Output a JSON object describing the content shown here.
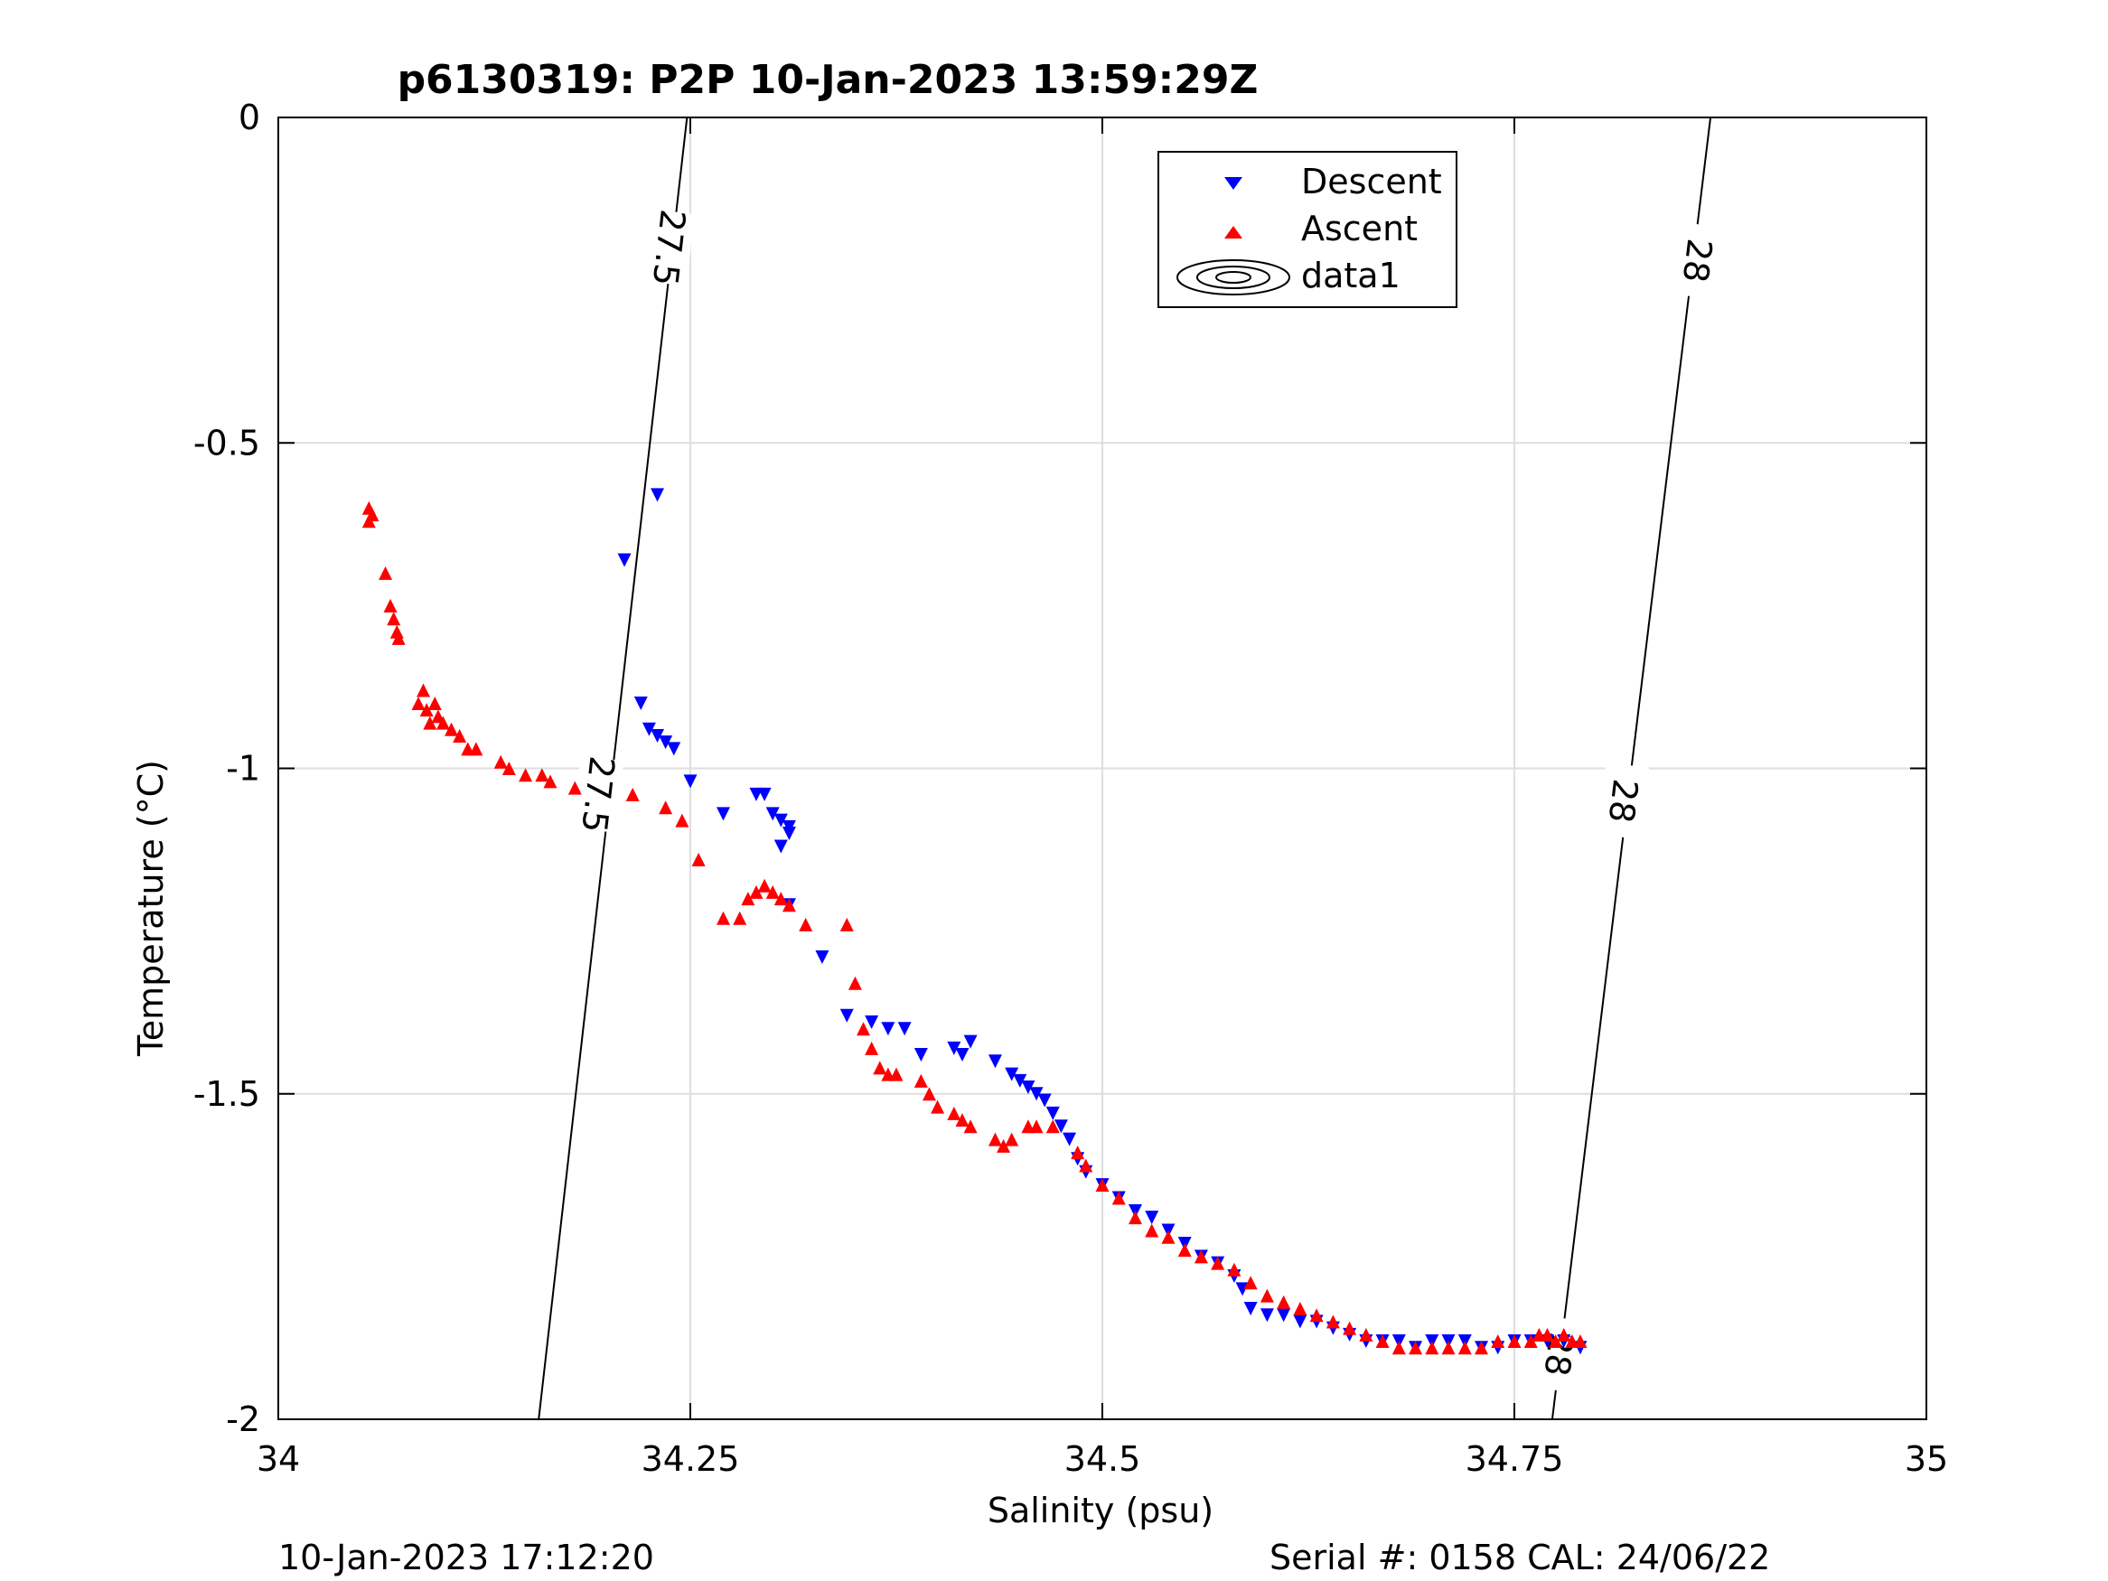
{
  "chart_data": {
    "type": "scatter",
    "title": "p6130319: P2P 10-Jan-2023 13:59:29Z",
    "xlabel": "Salinity (psu)",
    "ylabel": "Temperature (°C)",
    "xlim": [
      34,
      35
    ],
    "ylim": [
      -2,
      0
    ],
    "xticks": [
      "34",
      "34.25",
      "34.5",
      "34.75",
      "35"
    ],
    "xtick_values": [
      34,
      34.25,
      34.5,
      34.75,
      35
    ],
    "yticks": [
      "0",
      "-0.5",
      "-1",
      "-1.5",
      "-2"
    ],
    "ytick_values": [
      0,
      -0.5,
      -1,
      -1.5,
      -2
    ],
    "grid": true,
    "legend_position": "top-center",
    "footer_left": "10-Jan-2023 17:12:20",
    "footer_right": "Serial #: 0158  CAL: 24/06/22",
    "legend": [
      "Descent",
      "Ascent",
      "data1"
    ],
    "colors": {
      "descent": "#0000ff",
      "ascent": "#ff0000",
      "contour": "#000000",
      "grid": "#dedede"
    },
    "series": [
      {
        "name": "Descent",
        "marker": "triangle-down",
        "points": [
          [
            34.23,
            -0.58
          ],
          [
            34.21,
            -0.68
          ],
          [
            34.22,
            -0.9
          ],
          [
            34.225,
            -0.94
          ],
          [
            34.23,
            -0.95
          ],
          [
            34.235,
            -0.96
          ],
          [
            34.24,
            -0.97
          ],
          [
            34.25,
            -1.02
          ],
          [
            34.29,
            -1.04
          ],
          [
            34.295,
            -1.04
          ],
          [
            34.3,
            -1.07
          ],
          [
            34.305,
            -1.08
          ],
          [
            34.31,
            -1.09
          ],
          [
            34.31,
            -1.1
          ],
          [
            34.305,
            -1.12
          ],
          [
            34.27,
            -1.07
          ],
          [
            34.31,
            -1.21
          ],
          [
            34.33,
            -1.29
          ],
          [
            34.345,
            -1.38
          ],
          [
            34.36,
            -1.39
          ],
          [
            34.37,
            -1.4
          ],
          [
            34.38,
            -1.4
          ],
          [
            34.39,
            -1.44
          ],
          [
            34.41,
            -1.43
          ],
          [
            34.42,
            -1.42
          ],
          [
            34.415,
            -1.44
          ],
          [
            34.435,
            -1.45
          ],
          [
            34.445,
            -1.47
          ],
          [
            34.45,
            -1.48
          ],
          [
            34.455,
            -1.49
          ],
          [
            34.46,
            -1.5
          ],
          [
            34.465,
            -1.51
          ],
          [
            34.47,
            -1.53
          ],
          [
            34.475,
            -1.55
          ],
          [
            34.48,
            -1.57
          ],
          [
            34.485,
            -1.6
          ],
          [
            34.49,
            -1.62
          ],
          [
            34.5,
            -1.64
          ],
          [
            34.51,
            -1.66
          ],
          [
            34.52,
            -1.68
          ],
          [
            34.53,
            -1.69
          ],
          [
            34.54,
            -1.71
          ],
          [
            34.55,
            -1.73
          ],
          [
            34.56,
            -1.75
          ],
          [
            34.57,
            -1.76
          ],
          [
            34.58,
            -1.78
          ],
          [
            34.585,
            -1.8
          ],
          [
            34.59,
            -1.83
          ],
          [
            34.6,
            -1.84
          ],
          [
            34.61,
            -1.84
          ],
          [
            34.62,
            -1.85
          ],
          [
            34.63,
            -1.85
          ],
          [
            34.64,
            -1.86
          ],
          [
            34.65,
            -1.87
          ],
          [
            34.66,
            -1.88
          ],
          [
            34.67,
            -1.88
          ],
          [
            34.68,
            -1.88
          ],
          [
            34.69,
            -1.89
          ],
          [
            34.7,
            -1.88
          ],
          [
            34.71,
            -1.88
          ],
          [
            34.72,
            -1.88
          ],
          [
            34.73,
            -1.89
          ],
          [
            34.74,
            -1.89
          ],
          [
            34.75,
            -1.88
          ],
          [
            34.76,
            -1.88
          ],
          [
            34.77,
            -1.88
          ],
          [
            34.78,
            -1.88
          ],
          [
            34.79,
            -1.89
          ]
        ]
      },
      {
        "name": "Ascent",
        "marker": "triangle-up",
        "points": [
          [
            34.055,
            -0.6
          ],
          [
            34.055,
            -0.62
          ],
          [
            34.057,
            -0.61
          ],
          [
            34.065,
            -0.7
          ],
          [
            34.068,
            -0.75
          ],
          [
            34.07,
            -0.77
          ],
          [
            34.072,
            -0.79
          ],
          [
            34.073,
            -0.8
          ],
          [
            34.085,
            -0.9
          ],
          [
            34.088,
            -0.88
          ],
          [
            34.09,
            -0.91
          ],
          [
            34.092,
            -0.93
          ],
          [
            34.095,
            -0.9
          ],
          [
            34.097,
            -0.92
          ],
          [
            34.1,
            -0.93
          ],
          [
            34.105,
            -0.94
          ],
          [
            34.11,
            -0.95
          ],
          [
            34.115,
            -0.97
          ],
          [
            34.12,
            -0.97
          ],
          [
            34.135,
            -0.99
          ],
          [
            34.14,
            -1.0
          ],
          [
            34.15,
            -1.01
          ],
          [
            34.16,
            -1.01
          ],
          [
            34.165,
            -1.02
          ],
          [
            34.18,
            -1.03
          ],
          [
            34.215,
            -1.04
          ],
          [
            34.235,
            -1.06
          ],
          [
            34.245,
            -1.08
          ],
          [
            34.255,
            -1.14
          ],
          [
            34.27,
            -1.23
          ],
          [
            34.28,
            -1.23
          ],
          [
            34.285,
            -1.2
          ],
          [
            34.29,
            -1.19
          ],
          [
            34.295,
            -1.18
          ],
          [
            34.3,
            -1.19
          ],
          [
            34.305,
            -1.2
          ],
          [
            34.31,
            -1.21
          ],
          [
            34.32,
            -1.24
          ],
          [
            34.345,
            -1.24
          ],
          [
            34.35,
            -1.33
          ],
          [
            34.355,
            -1.4
          ],
          [
            34.36,
            -1.43
          ],
          [
            34.365,
            -1.46
          ],
          [
            34.37,
            -1.47
          ],
          [
            34.375,
            -1.47
          ],
          [
            34.39,
            -1.48
          ],
          [
            34.395,
            -1.5
          ],
          [
            34.4,
            -1.52
          ],
          [
            34.41,
            -1.53
          ],
          [
            34.415,
            -1.54
          ],
          [
            34.42,
            -1.55
          ],
          [
            34.435,
            -1.57
          ],
          [
            34.44,
            -1.58
          ],
          [
            34.445,
            -1.57
          ],
          [
            34.455,
            -1.55
          ],
          [
            34.46,
            -1.55
          ],
          [
            34.47,
            -1.55
          ],
          [
            34.485,
            -1.59
          ],
          [
            34.49,
            -1.61
          ],
          [
            34.5,
            -1.64
          ],
          [
            34.51,
            -1.66
          ],
          [
            34.52,
            -1.69
          ],
          [
            34.53,
            -1.71
          ],
          [
            34.54,
            -1.72
          ],
          [
            34.55,
            -1.74
          ],
          [
            34.56,
            -1.75
          ],
          [
            34.57,
            -1.76
          ],
          [
            34.58,
            -1.77
          ],
          [
            34.59,
            -1.79
          ],
          [
            34.6,
            -1.81
          ],
          [
            34.61,
            -1.82
          ],
          [
            34.62,
            -1.83
          ],
          [
            34.63,
            -1.84
          ],
          [
            34.64,
            -1.85
          ],
          [
            34.65,
            -1.86
          ],
          [
            34.66,
            -1.87
          ],
          [
            34.67,
            -1.88
          ],
          [
            34.68,
            -1.89
          ],
          [
            34.69,
            -1.89
          ],
          [
            34.7,
            -1.89
          ],
          [
            34.71,
            -1.89
          ],
          [
            34.72,
            -1.89
          ],
          [
            34.73,
            -1.89
          ],
          [
            34.74,
            -1.88
          ],
          [
            34.75,
            -1.88
          ],
          [
            34.76,
            -1.88
          ],
          [
            34.765,
            -1.87
          ],
          [
            34.77,
            -1.87
          ],
          [
            34.775,
            -1.88
          ],
          [
            34.78,
            -1.87
          ],
          [
            34.785,
            -1.88
          ],
          [
            34.79,
            -1.88
          ]
        ]
      }
    ],
    "contours": [
      {
        "label": "27.5",
        "points": [
          [
            34.158,
            -2.0
          ],
          [
            34.248,
            0.0
          ]
        ],
        "label_positions": [
          [
            34.237,
            -0.2
          ],
          [
            34.194,
            -1.04
          ]
        ]
      },
      {
        "label": "28",
        "points": [
          [
            34.773,
            -2.0
          ],
          [
            34.869,
            0.0
          ]
        ],
        "label_positions": [
          [
            34.861,
            -0.22
          ],
          [
            34.816,
            -1.05
          ],
          [
            34.777,
            -1.9
          ]
        ]
      }
    ]
  }
}
